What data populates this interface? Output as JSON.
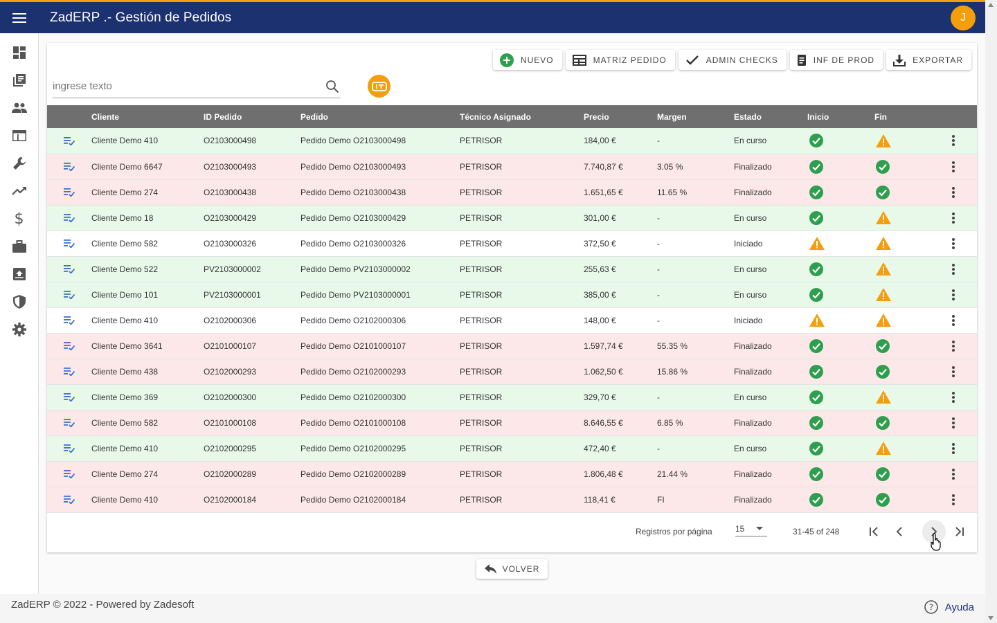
{
  "app": {
    "title": "ZadERP .- Gestión de Pedidos",
    "user_initial": "J"
  },
  "sidebar": {
    "items": [
      {
        "icon": "dashboard-icon"
      },
      {
        "icon": "library-books-icon"
      },
      {
        "icon": "people-icon"
      },
      {
        "icon": "web-window-icon"
      },
      {
        "icon": "wrench-icon"
      },
      {
        "icon": "trending-up-icon"
      },
      {
        "icon": "dollar-icon"
      },
      {
        "icon": "briefcase-icon"
      },
      {
        "icon": "inbox-upload-icon"
      },
      {
        "icon": "shield-icon"
      },
      {
        "icon": "gear-icon"
      }
    ]
  },
  "toolbar": {
    "nuevo": "NUEVO",
    "matriz": "MATRIZ PEDIDO",
    "admin": "ADMIN CHECKS",
    "inf": "INF DE PROD",
    "exportar": "EXPORTAR"
  },
  "search": {
    "placeholder": "ingrese texto",
    "value": ""
  },
  "table": {
    "headers": [
      "Cliente",
      "ID Pedido",
      "Pedido",
      "Técnico Asignado",
      "Precio",
      "Margen",
      "Estado",
      "Inicio",
      "Fin"
    ],
    "rows": [
      {
        "status": "green",
        "cliente": "Cliente Demo 410",
        "id": "O2103000498",
        "pedido": "Pedido Demo O2103000498",
        "tecnico": "PETRISOR",
        "precio": "184,00 €",
        "margen": "-",
        "estado": "En curso",
        "inicio": "check",
        "fin": "warning"
      },
      {
        "status": "red",
        "cliente": "Cliente Demo 6647",
        "id": "O2103000493",
        "pedido": "Pedido Demo O2103000493",
        "tecnico": "PETRISOR",
        "precio": "7.740,87 €",
        "margen": "3.05 %",
        "estado": "Finalizado",
        "inicio": "check",
        "fin": "check"
      },
      {
        "status": "red",
        "cliente": "Cliente Demo 274",
        "id": "O2103000438",
        "pedido": "Pedido Demo O2103000438",
        "tecnico": "PETRISOR",
        "precio": "1.651,65 €",
        "margen": "11.65 %",
        "estado": "Finalizado",
        "inicio": "check",
        "fin": "check"
      },
      {
        "status": "green",
        "cliente": "Cliente Demo 18",
        "id": "O2103000429",
        "pedido": "Pedido Demo O2103000429",
        "tecnico": "PETRISOR",
        "precio": "301,00 €",
        "margen": "-",
        "estado": "En curso",
        "inicio": "check",
        "fin": "warning"
      },
      {
        "status": "white",
        "cliente": "Cliente Demo 582",
        "id": "O2103000326",
        "pedido": "Pedido Demo O2103000326",
        "tecnico": "PETRISOR",
        "precio": "372,50 €",
        "margen": "-",
        "estado": "Iniciado",
        "inicio": "warning",
        "fin": "warning"
      },
      {
        "status": "green",
        "cliente": "Cliente Demo 522",
        "id": "PV2103000002",
        "pedido": "Pedido Demo PV2103000002",
        "tecnico": "PETRISOR",
        "precio": "255,63 €",
        "margen": "-",
        "estado": "En curso",
        "inicio": "check",
        "fin": "warning"
      },
      {
        "status": "green",
        "cliente": "Cliente Demo 101",
        "id": "PV2103000001",
        "pedido": "Pedido Demo PV2103000001",
        "tecnico": "PETRISOR",
        "precio": "385,00 €",
        "margen": "-",
        "estado": "En curso",
        "inicio": "check",
        "fin": "warning"
      },
      {
        "status": "white",
        "cliente": "Cliente Demo 410",
        "id": "O2102000306",
        "pedido": "Pedido Demo O2102000306",
        "tecnico": "PETRISOR",
        "precio": "148,00 €",
        "margen": "-",
        "estado": "Iniciado",
        "inicio": "warning",
        "fin": "warning"
      },
      {
        "status": "red",
        "cliente": "Cliente Demo 3641",
        "id": "O2101000107",
        "pedido": "Pedido Demo O2101000107",
        "tecnico": "PETRISOR",
        "precio": "1.597,74 €",
        "margen": "55.35 %",
        "estado": "Finalizado",
        "inicio": "check",
        "fin": "check"
      },
      {
        "status": "red",
        "cliente": "Cliente Demo 438",
        "id": "O2102000293",
        "pedido": "Pedido Demo O2102000293",
        "tecnico": "PETRISOR",
        "precio": "1.062,50 €",
        "margen": "15.86 %",
        "estado": "Finalizado",
        "inicio": "check",
        "fin": "check"
      },
      {
        "status": "green",
        "cliente": "Cliente Demo 369",
        "id": "O2102000300",
        "pedido": "Pedido Demo O2102000300",
        "tecnico": "PETRISOR",
        "precio": "329,70 €",
        "margen": "-",
        "estado": "En curso",
        "inicio": "check",
        "fin": "warning"
      },
      {
        "status": "red",
        "cliente": "Cliente Demo 582",
        "id": "O2101000108",
        "pedido": "Pedido Demo O2101000108",
        "tecnico": "PETRISOR",
        "precio": "8.646,55 €",
        "margen": "6.85 %",
        "estado": "Finalizado",
        "inicio": "check",
        "fin": "check"
      },
      {
        "status": "green",
        "cliente": "Cliente Demo 410",
        "id": "O2102000295",
        "pedido": "Pedido Demo O2102000295",
        "tecnico": "PETRISOR",
        "precio": "472,40 €",
        "margen": "-",
        "estado": "En curso",
        "inicio": "check",
        "fin": "warning"
      },
      {
        "status": "red",
        "cliente": "Cliente Demo 274",
        "id": "O2102000289",
        "pedido": "Pedido Demo O2102000289",
        "tecnico": "PETRISOR",
        "precio": "1.806,48 €",
        "margen": "21.44 %",
        "estado": "Finalizado",
        "inicio": "check",
        "fin": "check"
      },
      {
        "status": "red",
        "cliente": "Cliente Demo 410",
        "id": "O2102000184",
        "pedido": "Pedido Demo O2102000184",
        "tecnico": "PETRISOR",
        "precio": "118,41 €",
        "margen": "FI",
        "estado": "Finalizado",
        "inicio": "check",
        "fin": "check"
      }
    ]
  },
  "pagination": {
    "label": "Registros por página",
    "per_page": "15",
    "range": "31-45 of 248"
  },
  "volver": "VOLVER",
  "footer": {
    "copyright": "ZadERP © 2022 - Powered by Zadesoft",
    "help": "Ayuda"
  },
  "colors": {
    "header": "#1b3170",
    "accent": "#f59e0b",
    "row_green": "#e8f9ea",
    "row_red": "#fce8e8",
    "check_green": "#2e9e4f",
    "warning_orange": "#f59e0b"
  }
}
